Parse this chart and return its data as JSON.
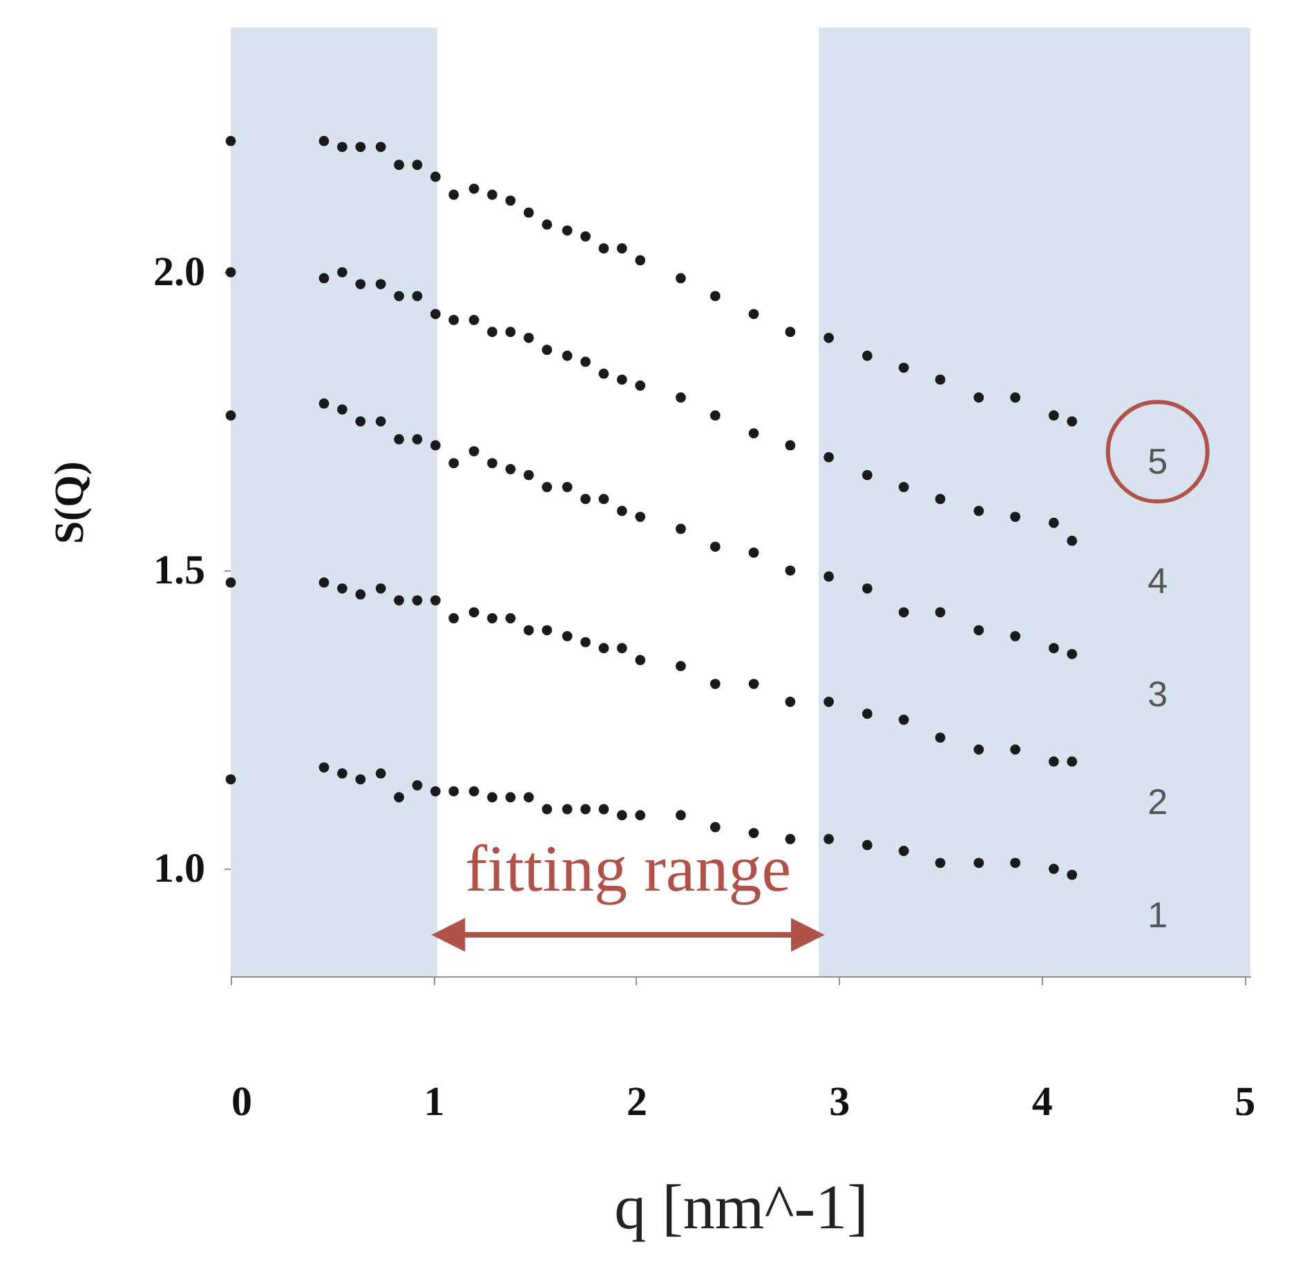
{
  "chart_data": {
    "type": "scatter",
    "xlabel": "q [nm^-1]",
    "ylabel": "S(Q)",
    "x": [
      0,
      0.46,
      0.55,
      0.64,
      0.74,
      0.83,
      0.92,
      1.01,
      1.1,
      1.2,
      1.29,
      1.38,
      1.47,
      1.56,
      1.66,
      1.75,
      1.84,
      1.93,
      2.02,
      2.22,
      2.39,
      2.58,
      2.76,
      2.95,
      3.14,
      3.32,
      3.5,
      3.69,
      3.87,
      4.06,
      4.15
    ],
    "series": [
      {
        "name": "1",
        "color": "#1a1a1a",
        "values": [
          1.15,
          1.17,
          1.16,
          1.15,
          1.16,
          1.12,
          1.14,
          1.13,
          1.13,
          1.13,
          1.12,
          1.12,
          1.12,
          1.1,
          1.1,
          1.1,
          1.1,
          1.09,
          1.09,
          1.09,
          1.07,
          1.06,
          1.05,
          1.05,
          1.04,
          1.03,
          1.01,
          1.01,
          1.01,
          1.0,
          0.99
        ]
      },
      {
        "name": "2",
        "color": "#1a1a1a",
        "values": [
          1.48,
          1.48,
          1.47,
          1.46,
          1.47,
          1.45,
          1.45,
          1.45,
          1.42,
          1.43,
          1.42,
          1.42,
          1.4,
          1.4,
          1.39,
          1.38,
          1.37,
          1.37,
          1.35,
          1.34,
          1.31,
          1.31,
          1.28,
          1.28,
          1.26,
          1.25,
          1.22,
          1.2,
          1.2,
          1.18,
          1.18
        ]
      },
      {
        "name": "3",
        "color": "#1a1a1a",
        "values": [
          1.76,
          1.78,
          1.77,
          1.75,
          1.75,
          1.72,
          1.72,
          1.71,
          1.68,
          1.7,
          1.68,
          1.67,
          1.66,
          1.64,
          1.64,
          1.62,
          1.62,
          1.6,
          1.59,
          1.57,
          1.54,
          1.53,
          1.5,
          1.49,
          1.47,
          1.43,
          1.43,
          1.4,
          1.39,
          1.37,
          1.36
        ]
      },
      {
        "name": "4",
        "color": "#1a1a1a",
        "values": [
          2.0,
          1.99,
          2.0,
          1.98,
          1.98,
          1.96,
          1.96,
          1.93,
          1.92,
          1.92,
          1.9,
          1.9,
          1.89,
          1.87,
          1.86,
          1.85,
          1.83,
          1.82,
          1.81,
          1.79,
          1.76,
          1.73,
          1.71,
          1.69,
          1.66,
          1.64,
          1.62,
          1.6,
          1.59,
          1.58,
          1.55
        ]
      },
      {
        "name": "5",
        "color": "#1a1a1a",
        "values": [
          2.22,
          2.22,
          2.21,
          2.21,
          2.21,
          2.18,
          2.18,
          2.16,
          2.13,
          2.14,
          2.13,
          2.12,
          2.1,
          2.08,
          2.07,
          2.06,
          2.04,
          2.04,
          2.02,
          1.99,
          1.96,
          1.93,
          1.9,
          1.89,
          1.86,
          1.84,
          1.82,
          1.79,
          1.79,
          1.76,
          1.75
        ]
      }
    ],
    "xlim": [
      0,
      5.03
    ],
    "ylim": [
      0.82,
      2.41
    ],
    "xticks": [
      0,
      1,
      2,
      3,
      4,
      5
    ],
    "yticks": [
      {
        "value": 1,
        "label": "1.0"
      },
      {
        "value": 1.5,
        "label": "1.5"
      },
      {
        "value": 2,
        "label": "2.0"
      }
    ],
    "bands": [
      {
        "axis": "x",
        "from": 0,
        "to": 1.02,
        "color": "#d9e3ef"
      },
      {
        "axis": "x",
        "from": 2.9,
        "to": 5.03,
        "color": "#d9e3ef"
      }
    ],
    "annotations": [
      "fitting range"
    ],
    "marker": "circle"
  }
}
